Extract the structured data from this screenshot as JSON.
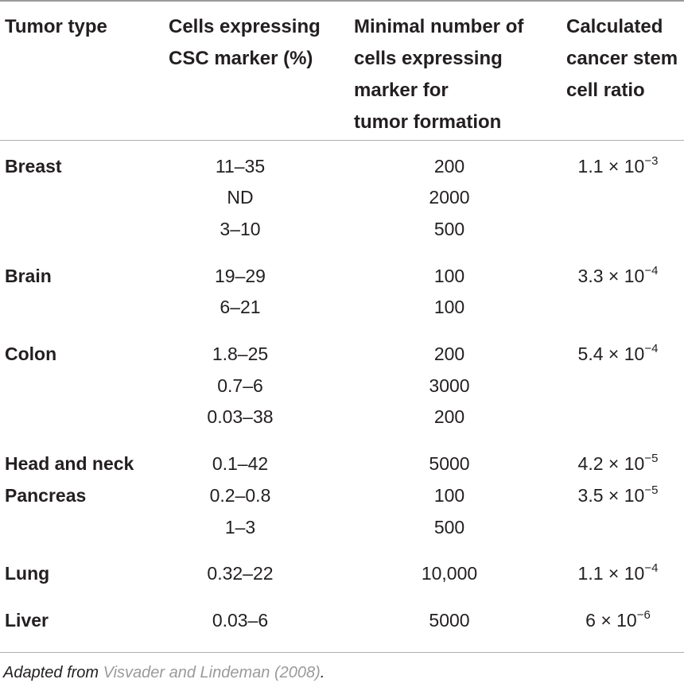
{
  "headers": [
    "Tumor type",
    "Cells expressing\nCSC marker (%)",
    "Minimal number of\ncells expressing\nmarker for\ntumor formation",
    "Calculated\ncancer stem\ncell ratio"
  ],
  "rows": [
    {
      "tumor": "Breast",
      "cells_pct": "11–35",
      "min_cells": "200",
      "ratio_base": "1.1 × 10",
      "ratio_exp": "−3"
    },
    {
      "tumor": "",
      "cells_pct": "ND",
      "min_cells": "2000",
      "ratio_base": "",
      "ratio_exp": ""
    },
    {
      "tumor": "",
      "cells_pct": "3–10",
      "min_cells": "500",
      "ratio_base": "",
      "ratio_exp": ""
    },
    {
      "tumor": "Brain",
      "cells_pct": "19–29",
      "min_cells": "100",
      "ratio_base": "3.3 × 10",
      "ratio_exp": "−4"
    },
    {
      "tumor": "",
      "cells_pct": "6–21",
      "min_cells": "100",
      "ratio_base": "",
      "ratio_exp": ""
    },
    {
      "tumor": "Colon",
      "cells_pct": "1.8–25",
      "min_cells": "200",
      "ratio_base": "5.4 × 10",
      "ratio_exp": "−4"
    },
    {
      "tumor": "",
      "cells_pct": "0.7–6",
      "min_cells": "3000",
      "ratio_base": "",
      "ratio_exp": ""
    },
    {
      "tumor": "",
      "cells_pct": "0.03–38",
      "min_cells": "200",
      "ratio_base": "",
      "ratio_exp": ""
    },
    {
      "tumor": "Head and neck",
      "cells_pct": "0.1–42",
      "min_cells": "5000",
      "ratio_base": "4.2 × 10",
      "ratio_exp": "−5"
    },
    {
      "tumor": "Pancreas",
      "cells_pct": "0.2–0.8",
      "min_cells": "100",
      "ratio_base": "3.5 × 10",
      "ratio_exp": "−5"
    },
    {
      "tumor": "",
      "cells_pct": "1–3",
      "min_cells": "500",
      "ratio_base": "",
      "ratio_exp": ""
    },
    {
      "tumor": "Lung",
      "cells_pct": "0.32–22",
      "min_cells": "10,000",
      "ratio_base": "1.1 × 10",
      "ratio_exp": "−4"
    },
    {
      "tumor": "Liver",
      "cells_pct": "0.03–6",
      "min_cells": "5000",
      "ratio_base": "6 × 10",
      "ratio_exp": "−6"
    }
  ],
  "footnote": {
    "prefix": "Adapted from ",
    "link": "Visvader and Lindeman (2008)",
    "suffix": "."
  },
  "colors": {
    "text": "#231f20",
    "link": "#9a9a9a",
    "rule": "#9a9a9a"
  }
}
